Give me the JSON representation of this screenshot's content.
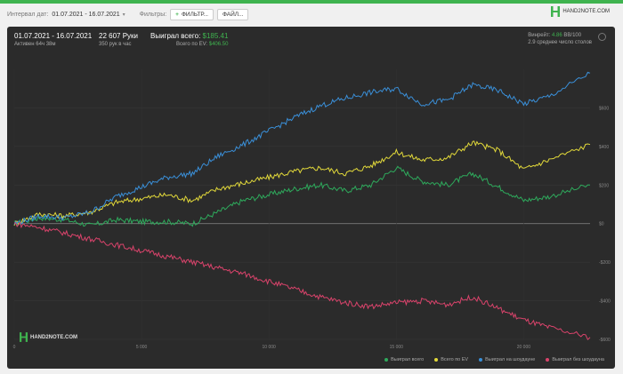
{
  "toolbar": {
    "interval_label": "Интервал дат:",
    "interval_value": "01.07.2021 - 16.07.2021",
    "filters_label": "Фильтры:",
    "filter_button": "ФИЛЬТР...",
    "file_button": "ФАЙЛ..."
  },
  "brand": {
    "name": "HAND2NOTE.COM"
  },
  "summary": {
    "dates": "01.07.2021 - 16.07.2021",
    "active": "Активен 64ч 38м",
    "hands": "22 607 Руки",
    "hands_per_hour": "350 рук в час",
    "won_label": "Выиграл всего:",
    "won_value": "$185.41",
    "ev_label": "Всего по EV:",
    "ev_value": "$406.50",
    "winrate_label": "Винрейт:",
    "winrate_value": "4.86",
    "winrate_unit": "BB/100",
    "tables": "2.9 среднее число столов"
  },
  "chart_data": {
    "type": "line",
    "x_ticks": [
      "0",
      "5 000",
      "10 000",
      "15 000",
      "20 000"
    ],
    "y_ticks": [
      "$600",
      "$400",
      "$200",
      "$0",
      "-$200",
      "-$400",
      "-$600"
    ],
    "x_range": [
      0,
      22607
    ],
    "y_range": [
      -600,
      800
    ],
    "grid": true,
    "legend_position": "bottom-right",
    "series": [
      {
        "name": "Выиграл всего",
        "color": "#2eaa5c",
        "x": [
          0,
          1000,
          2000,
          3000,
          4000,
          5000,
          6000,
          7000,
          8000,
          9000,
          10000,
          11000,
          12000,
          13000,
          14000,
          15000,
          16000,
          17000,
          18000,
          19000,
          20000,
          21000,
          22607
        ],
        "y": [
          0,
          30,
          20,
          -10,
          20,
          10,
          10,
          0,
          60,
          120,
          150,
          180,
          200,
          170,
          200,
          290,
          220,
          200,
          260,
          190,
          120,
          140,
          200
        ]
      },
      {
        "name": "Всего по EV",
        "color": "#e2d93a",
        "x": [
          0,
          1000,
          2000,
          3000,
          4000,
          5000,
          6000,
          7000,
          8000,
          9000,
          10000,
          11000,
          12000,
          13000,
          14000,
          15000,
          16000,
          17000,
          18000,
          19000,
          20000,
          21000,
          22607
        ],
        "y": [
          0,
          50,
          40,
          60,
          110,
          130,
          150,
          120,
          180,
          210,
          240,
          270,
          290,
          260,
          300,
          370,
          330,
          340,
          420,
          380,
          280,
          330,
          410
        ]
      },
      {
        "name": "Выиграл на шоудауне",
        "color": "#3a8fd8",
        "x": [
          0,
          1000,
          2000,
          3000,
          4000,
          5000,
          6000,
          7000,
          8000,
          9000,
          10000,
          11000,
          12000,
          13000,
          14000,
          15000,
          16000,
          17000,
          18000,
          19000,
          20000,
          21000,
          22607
        ],
        "y": [
          0,
          40,
          30,
          60,
          140,
          190,
          240,
          260,
          350,
          410,
          480,
          550,
          610,
          650,
          680,
          700,
          620,
          640,
          720,
          690,
          620,
          660,
          780
        ]
      },
      {
        "name": "Выиграл без шоудауна",
        "color": "#d9436b",
        "x": [
          0,
          1000,
          2000,
          3000,
          4000,
          5000,
          6000,
          7000,
          8000,
          9000,
          10000,
          11000,
          12000,
          13000,
          14000,
          15000,
          16000,
          17000,
          18000,
          19000,
          20000,
          21000,
          22607
        ],
        "y": [
          0,
          -20,
          -50,
          -80,
          -110,
          -140,
          -170,
          -200,
          -230,
          -260,
          -300,
          -340,
          -380,
          -410,
          -430,
          -410,
          -400,
          -420,
          -380,
          -440,
          -500,
          -540,
          -590
        ]
      }
    ]
  },
  "watermark": {
    "text": "HAND2NOTE.COM"
  }
}
